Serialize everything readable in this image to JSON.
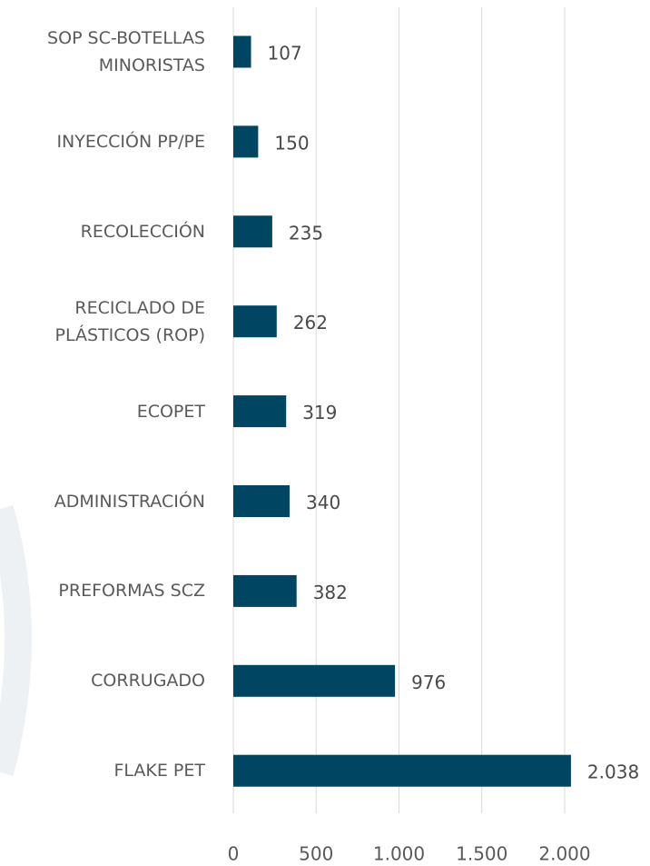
{
  "chart_data": {
    "type": "hbar",
    "categories": [
      "SOP SC-BOTELLAS\nMINORISTAS",
      "INYECCIÓN PP/PE",
      "RECOLECCIÓN",
      "RECICLADO DE\nPLÁSTICOS (ROP)",
      "ECOPET",
      "ADMINISTRACIÓN",
      "PREFORMAS SCZ",
      "CORRUGADO",
      "FLAKE PET"
    ],
    "values": [
      107,
      150,
      235,
      262,
      319,
      340,
      382,
      976,
      2038
    ],
    "value_labels": [
      "107",
      "150",
      "235",
      "262",
      "319",
      "340",
      "382",
      "976",
      "2.038"
    ],
    "color": "#004561",
    "xlim": [
      0,
      2200
    ],
    "xticks": [
      0,
      500,
      {
        "value": 1000,
        "label": "1.000"
      },
      {
        "value": 1500,
        "label": "1.500"
      },
      {
        "value": 2000,
        "label": "2.000"
      }
    ],
    "grid": true
  }
}
